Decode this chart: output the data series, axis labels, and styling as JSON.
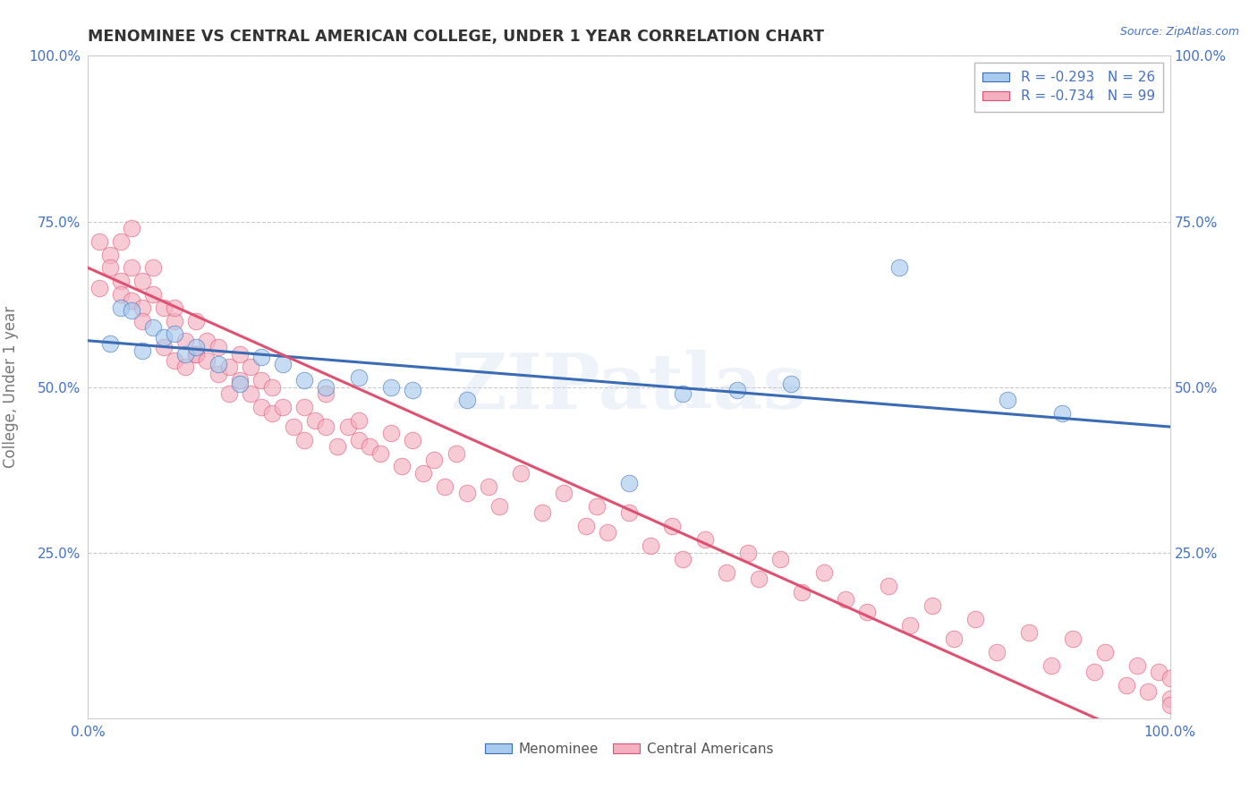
{
  "title": "MENOMINEE VS CENTRAL AMERICAN COLLEGE, UNDER 1 YEAR CORRELATION CHART",
  "source": "Source: ZipAtlas.com",
  "ylabel": "College, Under 1 year",
  "xlim": [
    0.0,
    1.0
  ],
  "ylim": [
    0.0,
    1.0
  ],
  "legend_labels": [
    "Menominee",
    "Central Americans"
  ],
  "r_menominee": -0.293,
  "n_menominee": 26,
  "r_central": -0.734,
  "n_central": 99,
  "color_menominee": "#A8CAEC",
  "color_central": "#F4B0C0",
  "line_color_menominee": "#3A6BB5",
  "line_color_central": "#E05070",
  "watermark": "ZIPatlas",
  "background_color": "#FFFFFF",
  "grid_color": "#BBBBBB",
  "line_intercept_m": 0.57,
  "line_slope_m": -0.13,
  "line_intercept_c": 0.68,
  "line_slope_c": -0.73,
  "menominee_x": [
    0.02,
    0.03,
    0.04,
    0.05,
    0.06,
    0.07,
    0.08,
    0.09,
    0.1,
    0.12,
    0.14,
    0.16,
    0.18,
    0.2,
    0.22,
    0.25,
    0.28,
    0.3,
    0.35,
    0.5,
    0.55,
    0.6,
    0.65,
    0.75,
    0.85,
    0.9
  ],
  "menominee_y": [
    0.565,
    0.62,
    0.615,
    0.555,
    0.59,
    0.575,
    0.58,
    0.55,
    0.56,
    0.535,
    0.505,
    0.545,
    0.535,
    0.51,
    0.5,
    0.515,
    0.5,
    0.495,
    0.48,
    0.355,
    0.49,
    0.495,
    0.505,
    0.68,
    0.48,
    0.46
  ],
  "central_x": [
    0.01,
    0.01,
    0.02,
    0.02,
    0.03,
    0.03,
    0.03,
    0.04,
    0.04,
    0.04,
    0.05,
    0.05,
    0.05,
    0.06,
    0.06,
    0.07,
    0.07,
    0.08,
    0.08,
    0.08,
    0.09,
    0.09,
    0.1,
    0.1,
    0.1,
    0.11,
    0.11,
    0.12,
    0.12,
    0.13,
    0.13,
    0.14,
    0.14,
    0.15,
    0.15,
    0.16,
    0.16,
    0.17,
    0.17,
    0.18,
    0.19,
    0.2,
    0.2,
    0.21,
    0.22,
    0.22,
    0.23,
    0.24,
    0.25,
    0.25,
    0.26,
    0.27,
    0.28,
    0.29,
    0.3,
    0.31,
    0.32,
    0.33,
    0.34,
    0.35,
    0.37,
    0.38,
    0.4,
    0.42,
    0.44,
    0.46,
    0.47,
    0.48,
    0.5,
    0.52,
    0.54,
    0.55,
    0.57,
    0.59,
    0.61,
    0.62,
    0.64,
    0.66,
    0.68,
    0.7,
    0.72,
    0.74,
    0.76,
    0.78,
    0.8,
    0.82,
    0.84,
    0.87,
    0.89,
    0.91,
    0.93,
    0.94,
    0.96,
    0.97,
    0.98,
    0.99,
    1.0,
    1.0,
    1.0
  ],
  "central_y": [
    0.72,
    0.65,
    0.7,
    0.68,
    0.66,
    0.72,
    0.64,
    0.68,
    0.63,
    0.74,
    0.62,
    0.66,
    0.6,
    0.64,
    0.68,
    0.62,
    0.56,
    0.6,
    0.54,
    0.62,
    0.57,
    0.53,
    0.55,
    0.6,
    0.55,
    0.54,
    0.57,
    0.52,
    0.56,
    0.53,
    0.49,
    0.51,
    0.55,
    0.49,
    0.53,
    0.47,
    0.51,
    0.5,
    0.46,
    0.47,
    0.44,
    0.47,
    0.42,
    0.45,
    0.44,
    0.49,
    0.41,
    0.44,
    0.42,
    0.45,
    0.41,
    0.4,
    0.43,
    0.38,
    0.42,
    0.37,
    0.39,
    0.35,
    0.4,
    0.34,
    0.35,
    0.32,
    0.37,
    0.31,
    0.34,
    0.29,
    0.32,
    0.28,
    0.31,
    0.26,
    0.29,
    0.24,
    0.27,
    0.22,
    0.25,
    0.21,
    0.24,
    0.19,
    0.22,
    0.18,
    0.16,
    0.2,
    0.14,
    0.17,
    0.12,
    0.15,
    0.1,
    0.13,
    0.08,
    0.12,
    0.07,
    0.1,
    0.05,
    0.08,
    0.04,
    0.07,
    0.03,
    0.06,
    0.02
  ]
}
